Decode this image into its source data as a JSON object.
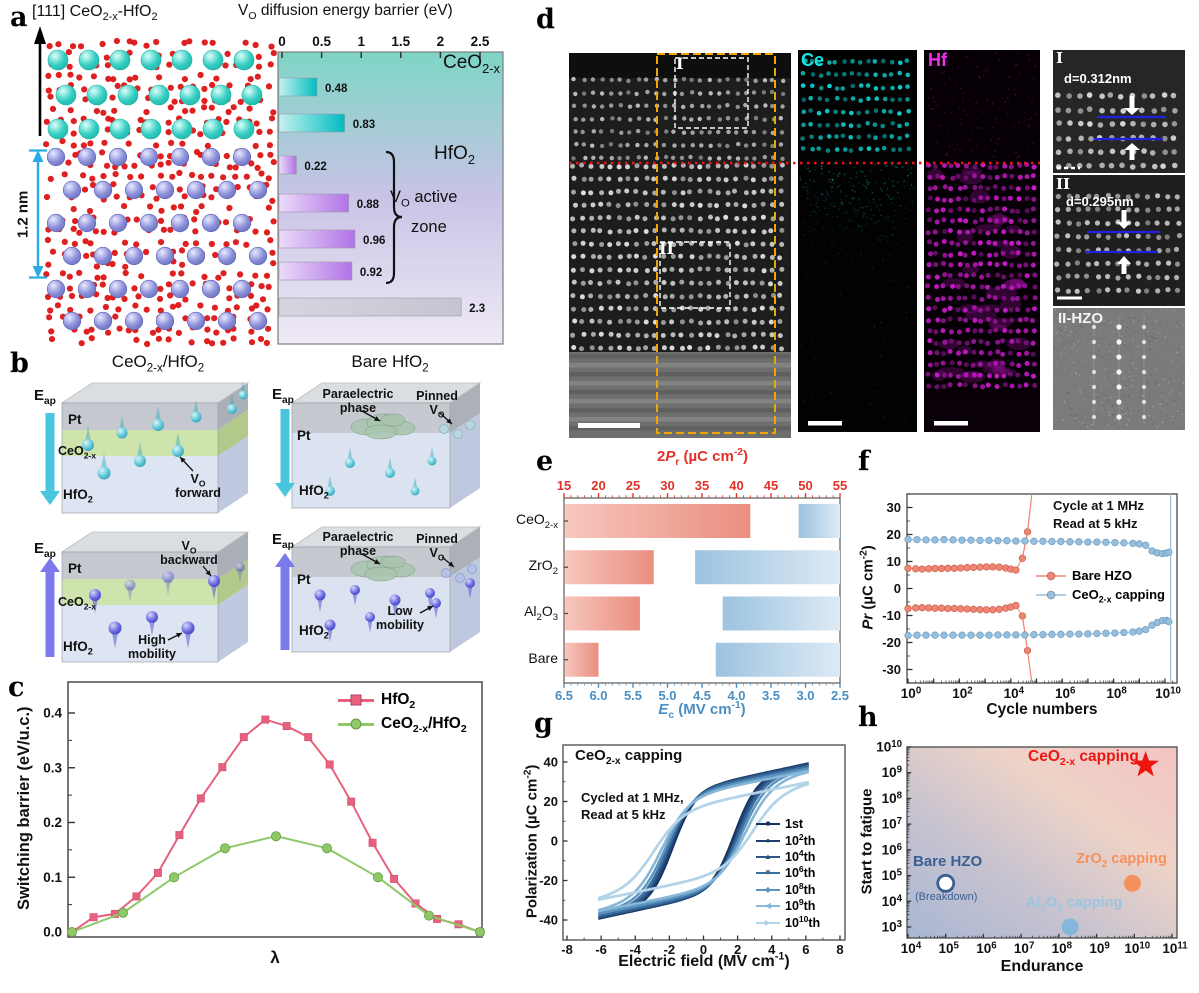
{
  "panels": {
    "a": {
      "letter": "a",
      "structure_title": "[111] CeO_{2-x}-HfO_{2}",
      "thickness": "1.2 nm",
      "atom_colors": {
        "ce": "#35cec2",
        "hf": "#8a8fd8",
        "o": "#dd1414"
      }
    },
    "b": {
      "letter": "b",
      "left_title": "CeO_{2-x}/HfO_{2}",
      "right_title": "Bare HfO_{2}",
      "eap": "E_{ap}",
      "pt": "Pt",
      "ceo": "CeO_{2-x}",
      "hfo": "HfO_{2}",
      "vo_forward": "V_{O} forward",
      "vo_backward": "V_{O} backward",
      "high_mobility": "High mobility",
      "low_mobility": "Low mobility",
      "paraelectric": "Paraelectric phase",
      "pinned": "Pinned V_{O}",
      "field_down_color": "#49c5de",
      "field_up_color": "#7b7aec",
      "drop_down_color": "#2fa8bc",
      "drop_up_color": "#3c3ccc"
    },
    "c": {
      "letter": "c"
    },
    "d": {
      "letter": "d",
      "region1": "I",
      "region2": "II",
      "ce_label": "Ce",
      "hf_label": "Hf",
      "ce_color": "#17e3e3",
      "hf_color": "#ed2fed",
      "inset1_label": "I",
      "inset1_d": "d=0.312nm",
      "inset2_label": "II",
      "inset2_d": "d=0.295nm",
      "inset3_label": "II-HZO"
    },
    "e": {
      "letter": "e"
    },
    "f": {
      "letter": "f",
      "annotation1": "Cycle at 1 MHz",
      "annotation2": "Read at 5 kHz"
    },
    "g": {
      "letter": "g",
      "title": "CeO_{2-x} capping",
      "annotation1": "Cycled at 1 MHz,",
      "annotation2": "Read at 5 kHz"
    },
    "h": {
      "letter": "h"
    }
  },
  "chart_data": [
    {
      "panel": "a",
      "type": "bar",
      "orientation": "horizontal",
      "title": "V_{O} diffusion energy barrier (eV)",
      "xticks": [
        "0",
        "0.5",
        "1",
        "1.5",
        "2",
        "2.5"
      ],
      "xlim": [
        0,
        2.8
      ],
      "values": [
        0.48,
        0.83,
        0.22,
        0.88,
        0.96,
        0.92,
        2.3
      ],
      "value_labels": [
        "0.48",
        "0.83",
        "0.22",
        "0.88",
        "0.96",
        "0.92",
        "2.3"
      ],
      "groups": [
        "ceo2",
        "ceo2",
        "hfo2",
        "hfo2",
        "hfo2",
        "hfo2",
        "bulk"
      ],
      "region_labels": [
        "CeO_{2-x}",
        "HfO_{2}"
      ],
      "zone_label_lines": [
        "V_{O} active",
        "zone"
      ],
      "colors": {
        "ceo2": [
          "#c6f1ef",
          "#00bcc0"
        ],
        "hfo2": [
          "#eadcf9",
          "#b273e6"
        ],
        "bulk": [
          "#d8d4df",
          "#c7c3d0"
        ],
        "bg": [
          "#7ed5c6",
          "#c9c3e6",
          "#efeaf5"
        ]
      }
    },
    {
      "panel": "c",
      "type": "line",
      "xlabel": "λ",
      "ylabel": "Switching barrier (eV/u.c.)",
      "yticks": [
        "0.0",
        "0.1",
        "0.2",
        "0.3",
        "0.4"
      ],
      "ylim": [
        -0.02,
        0.45
      ],
      "series": [
        {
          "name": "HfO_{2}",
          "color": "#e7617f",
          "marker": "square",
          "y": [
            0,
            0.027,
            0.033,
            0.065,
            0.108,
            0.177,
            0.244,
            0.301,
            0.356,
            0.388,
            0.376,
            0.356,
            0.306,
            0.238,
            0.163,
            0.097,
            0.052,
            0.024,
            0.014,
            0
          ]
        },
        {
          "name": "CeO_{2-x}/HfO_{2}",
          "color": "#8fc868",
          "marker": "circle",
          "y": [
            0,
            0.035,
            0.1,
            0.153,
            0.175,
            0.153,
            0.1,
            0.03,
            0
          ]
        }
      ]
    },
    {
      "panel": "e",
      "type": "bar-dual",
      "top_label": "2~{P}_{r} (µC cm^{-2})",
      "top_color": "#e03228",
      "top_ticks": [
        "15",
        "20",
        "25",
        "30",
        "35",
        "40",
        "45",
        "50",
        "55"
      ],
      "bottom_label": "~{E}_{c} (MV cm^{-1})",
      "bottom_color": "#4a8ec2",
      "bottom_ticks": [
        "6.5",
        "6.0",
        "5.5",
        "5.0",
        "4.5",
        "4.0",
        "3.5",
        "3.0",
        "2.5"
      ],
      "categories": [
        "CeO_{2-x}",
        "ZrO_{2}",
        "Al_{2}O_{3}",
        "Bare"
      ],
      "pr2": [
        42,
        28,
        26,
        20
      ],
      "ec": [
        3.1,
        4.6,
        4.2,
        4.3
      ],
      "colors": {
        "red": [
          "#f7c7be",
          "#e98e7e"
        ],
        "blue": [
          "#9cc3e0",
          "#ddeaf5"
        ]
      }
    },
    {
      "panel": "f",
      "type": "line-log",
      "xlabel": "Cycle numbers",
      "ylabel": "~{Pr} (µC cm^{-2})",
      "yticks": [
        -30,
        -20,
        -10,
        0,
        10,
        20,
        30
      ],
      "xtick_exps": [
        0,
        2,
        4,
        6,
        8,
        10
      ],
      "ylim": [
        -35,
        35
      ],
      "series": [
        {
          "name": "Bare HZO",
          "color": "#f08574",
          "break_exp": 4.9,
          "pos": [
            [
              0,
              7.5
            ],
            [
              0.3,
              7.3
            ],
            [
              0.55,
              7.2
            ],
            [
              0.8,
              7.3
            ],
            [
              1.05,
              7.4
            ],
            [
              1.3,
              7.4
            ],
            [
              1.55,
              7.5
            ],
            [
              1.8,
              7.5
            ],
            [
              2.05,
              7.6
            ],
            [
              2.3,
              7.7
            ],
            [
              2.55,
              7.8
            ],
            [
              2.8,
              7.9
            ],
            [
              3.05,
              8
            ],
            [
              3.3,
              8
            ],
            [
              3.55,
              7.9
            ],
            [
              3.8,
              7.6
            ],
            [
              4,
              7.2
            ],
            [
              4.2,
              6.8
            ],
            [
              4.45,
              11.2
            ],
            [
              4.65,
              21
            ]
          ],
          "neg": [
            [
              0,
              -7.4
            ],
            [
              0.3,
              -7.2
            ],
            [
              0.55,
              -7.1
            ],
            [
              0.8,
              -7.2
            ],
            [
              1.05,
              -7.3
            ],
            [
              1.3,
              -7.3
            ],
            [
              1.55,
              -7.4
            ],
            [
              1.8,
              -7.4
            ],
            [
              2.05,
              -7.5
            ],
            [
              2.3,
              -7.6
            ],
            [
              2.55,
              -7.7
            ],
            [
              2.8,
              -7.8
            ],
            [
              3.05,
              -7.9
            ],
            [
              3.3,
              -7.9
            ],
            [
              3.55,
              -7.7
            ],
            [
              3.8,
              -7.3
            ],
            [
              4,
              -6.9
            ],
            [
              4.2,
              -6.3
            ],
            [
              4.45,
              -10.2
            ],
            [
              4.65,
              -23
            ]
          ]
        },
        {
          "name": "CeO_{2-x} capping",
          "color": "#96bedd",
          "break_exp": 10.2,
          "pos": [
            [
              0,
              18.2
            ],
            [
              0.35,
              18.1
            ],
            [
              0.7,
              18
            ],
            [
              1.05,
              18
            ],
            [
              1.4,
              18.1
            ],
            [
              1.75,
              18
            ],
            [
              2.1,
              17.9
            ],
            [
              2.45,
              17.9
            ],
            [
              2.8,
              17.8
            ],
            [
              3.15,
              17.8
            ],
            [
              3.5,
              17.7
            ],
            [
              3.85,
              17.7
            ],
            [
              4.2,
              17.6
            ],
            [
              4.55,
              17.6
            ],
            [
              4.9,
              17.5
            ],
            [
              5.25,
              17.5
            ],
            [
              5.6,
              17.4
            ],
            [
              5.95,
              17.4
            ],
            [
              6.3,
              17.3
            ],
            [
              6.65,
              17.3
            ],
            [
              7,
              17.2
            ],
            [
              7.35,
              17.2
            ],
            [
              7.7,
              17.1
            ],
            [
              8.05,
              17
            ],
            [
              8.4,
              16.9
            ],
            [
              8.75,
              16.7
            ],
            [
              9,
              16.5
            ],
            [
              9.25,
              16
            ],
            [
              9.5,
              13.9
            ],
            [
              9.7,
              13.2
            ],
            [
              9.9,
              12.9
            ],
            [
              10.05,
              13.1
            ],
            [
              10.15,
              13.4
            ]
          ],
          "neg": [
            [
              0,
              -17.4
            ],
            [
              0.35,
              -17.3
            ],
            [
              0.7,
              -17.3
            ],
            [
              1.05,
              -17.3
            ],
            [
              1.4,
              -17.3
            ],
            [
              1.75,
              -17.3
            ],
            [
              2.1,
              -17.3
            ],
            [
              2.45,
              -17.3
            ],
            [
              2.8,
              -17.3
            ],
            [
              3.15,
              -17.3
            ],
            [
              3.5,
              -17.2
            ],
            [
              3.85,
              -17.2
            ],
            [
              4.2,
              -17.2
            ],
            [
              4.55,
              -17.2
            ],
            [
              4.9,
              -17.1
            ],
            [
              5.25,
              -17.1
            ],
            [
              5.6,
              -17
            ],
            [
              5.95,
              -17
            ],
            [
              6.3,
              -16.9
            ],
            [
              6.65,
              -16.9
            ],
            [
              7,
              -16.8
            ],
            [
              7.35,
              -16.7
            ],
            [
              7.7,
              -16.6
            ],
            [
              8.05,
              -16.5
            ],
            [
              8.4,
              -16.3
            ],
            [
              8.75,
              -16.1
            ],
            [
              9,
              -15.8
            ],
            [
              9.25,
              -15.2
            ],
            [
              9.5,
              -13.6
            ],
            [
              9.7,
              -12.6
            ],
            [
              9.9,
              -11.9
            ],
            [
              10.05,
              -11.8
            ],
            [
              10.15,
              -12.3
            ]
          ]
        }
      ]
    },
    {
      "panel": "g",
      "type": "hysteresis",
      "xlabel": "Electric field (MV cm^{-1})",
      "ylabel": "Polarization (µC cm^{-2})",
      "xticks": [
        -8,
        -6,
        -4,
        -2,
        0,
        2,
        4,
        6,
        8
      ],
      "yticks": [
        -40,
        -20,
        0,
        20,
        40
      ],
      "emax": 6.1,
      "loops": [
        {
          "name": "1st",
          "marker": "■",
          "color": "#16335f",
          "ec": 1.8,
          "ps": 28,
          "w": 1.35,
          "k": 1.85
        },
        {
          "name": "10^{2}th",
          "marker": "●",
          "color": "#1d416f",
          "ec": 1.9,
          "ps": 28,
          "w": 1.35,
          "k": 1.8
        },
        {
          "name": "10^{4}th",
          "marker": "▲",
          "color": "#2a5788",
          "ec": 2,
          "ps": 27.5,
          "w": 1.4,
          "k": 1.8
        },
        {
          "name": "10^{6}th",
          "marker": "▼",
          "color": "#3a6fa0",
          "ec": 2.1,
          "ps": 27,
          "w": 1.45,
          "k": 1.75
        },
        {
          "name": "10^{8}th",
          "marker": "◆",
          "color": "#5c93bf",
          "ec": 2.25,
          "ps": 26,
          "w": 1.5,
          "k": 1.75
        },
        {
          "name": "10^{9}th",
          "marker": "◀",
          "color": "#86b6d8",
          "ec": 2.45,
          "ps": 25,
          "w": 1.6,
          "k": 1.7
        },
        {
          "name": "10^{10}th",
          "marker": "▶",
          "color": "#b2d3e8",
          "ec": 2.9,
          "ps": 19,
          "w": 1.7,
          "k": 1.75
        }
      ]
    },
    {
      "panel": "h",
      "type": "scatter",
      "xlabel": "Endurance",
      "ylabel": "Start to fatigue",
      "xtick_exps": [
        4,
        5,
        6,
        7,
        8,
        9,
        10,
        11
      ],
      "ytick_exps": [
        3,
        4,
        5,
        6,
        7,
        8,
        9,
        10
      ],
      "points": [
        {
          "name": "Bare HZO",
          "note": "(Breakdown)",
          "x_exp": 5,
          "y_exp": 4.7,
          "style": "open-circle",
          "color": "#3c5f92",
          "label_color": "#3c5f92"
        },
        {
          "name": "Al_{2}O_{3} capping",
          "x_exp": 8.3,
          "y_exp": 3,
          "style": "circle",
          "color": "#85b7da",
          "label_color": "#9cc4e0"
        },
        {
          "name": "ZrO_{2} capping",
          "x_exp": 9.95,
          "y_exp": 4.7,
          "style": "circle",
          "color": "#f5915c",
          "label_color": "#f5915c"
        },
        {
          "name": "CeO_{2-x} capping",
          "x_exp": 10.3,
          "y_exp": 9.3,
          "style": "star",
          "color": "#ee1511",
          "label_color": "#ee1511"
        }
      ],
      "bg": [
        "#a9b7d3",
        "#c6c2d0",
        "#eed3c7",
        "#f4c3c3"
      ]
    }
  ]
}
